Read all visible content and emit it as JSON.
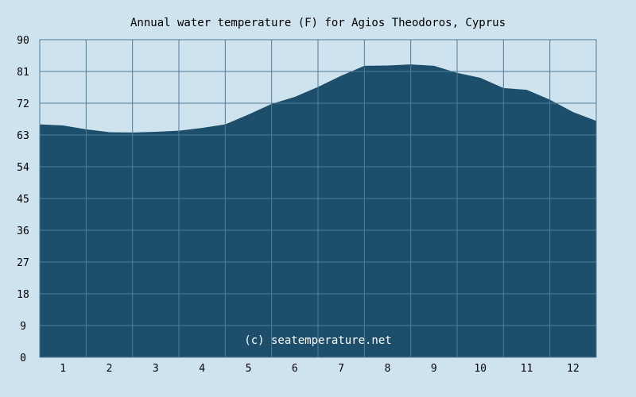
{
  "chart_data": {
    "type": "area",
    "title": "Annual water temperature (F) for Agios Theodoros, Cyprus",
    "xlabel": "",
    "ylabel": "",
    "xlim": [
      0.5,
      12.5
    ],
    "ylim": [
      0,
      90
    ],
    "x_ticks": [
      "1",
      "2",
      "3",
      "4",
      "5",
      "6",
      "7",
      "8",
      "9",
      "10",
      "11",
      "12"
    ],
    "y_ticks": [
      "0",
      "9",
      "18",
      "27",
      "36",
      "45",
      "54",
      "63",
      "72",
      "81",
      "90"
    ],
    "grid": true,
    "watermark": "(c) seatemperature.net",
    "x": [
      0.5,
      1.0,
      1.5,
      2.0,
      2.5,
      3.0,
      3.5,
      4.0,
      4.5,
      5.0,
      5.5,
      6.0,
      6.5,
      7.0,
      7.5,
      8.0,
      8.5,
      9.0,
      9.5,
      10.0,
      10.5,
      11.0,
      11.5,
      12.0,
      12.5
    ],
    "y": [
      66.0,
      65.7,
      64.6,
      63.8,
      63.7,
      63.9,
      64.2,
      65.0,
      66.0,
      68.8,
      71.8,
      73.8,
      76.6,
      79.8,
      82.6,
      82.7,
      83.0,
      82.6,
      80.6,
      79.2,
      76.3,
      75.8,
      73.0,
      69.5,
      67.0
    ],
    "colors": {
      "background": "#cfe3ee",
      "area": "#1d4e6b",
      "grid": "#4f7d99",
      "text": "#000000",
      "watermark": "#ffffff"
    }
  }
}
